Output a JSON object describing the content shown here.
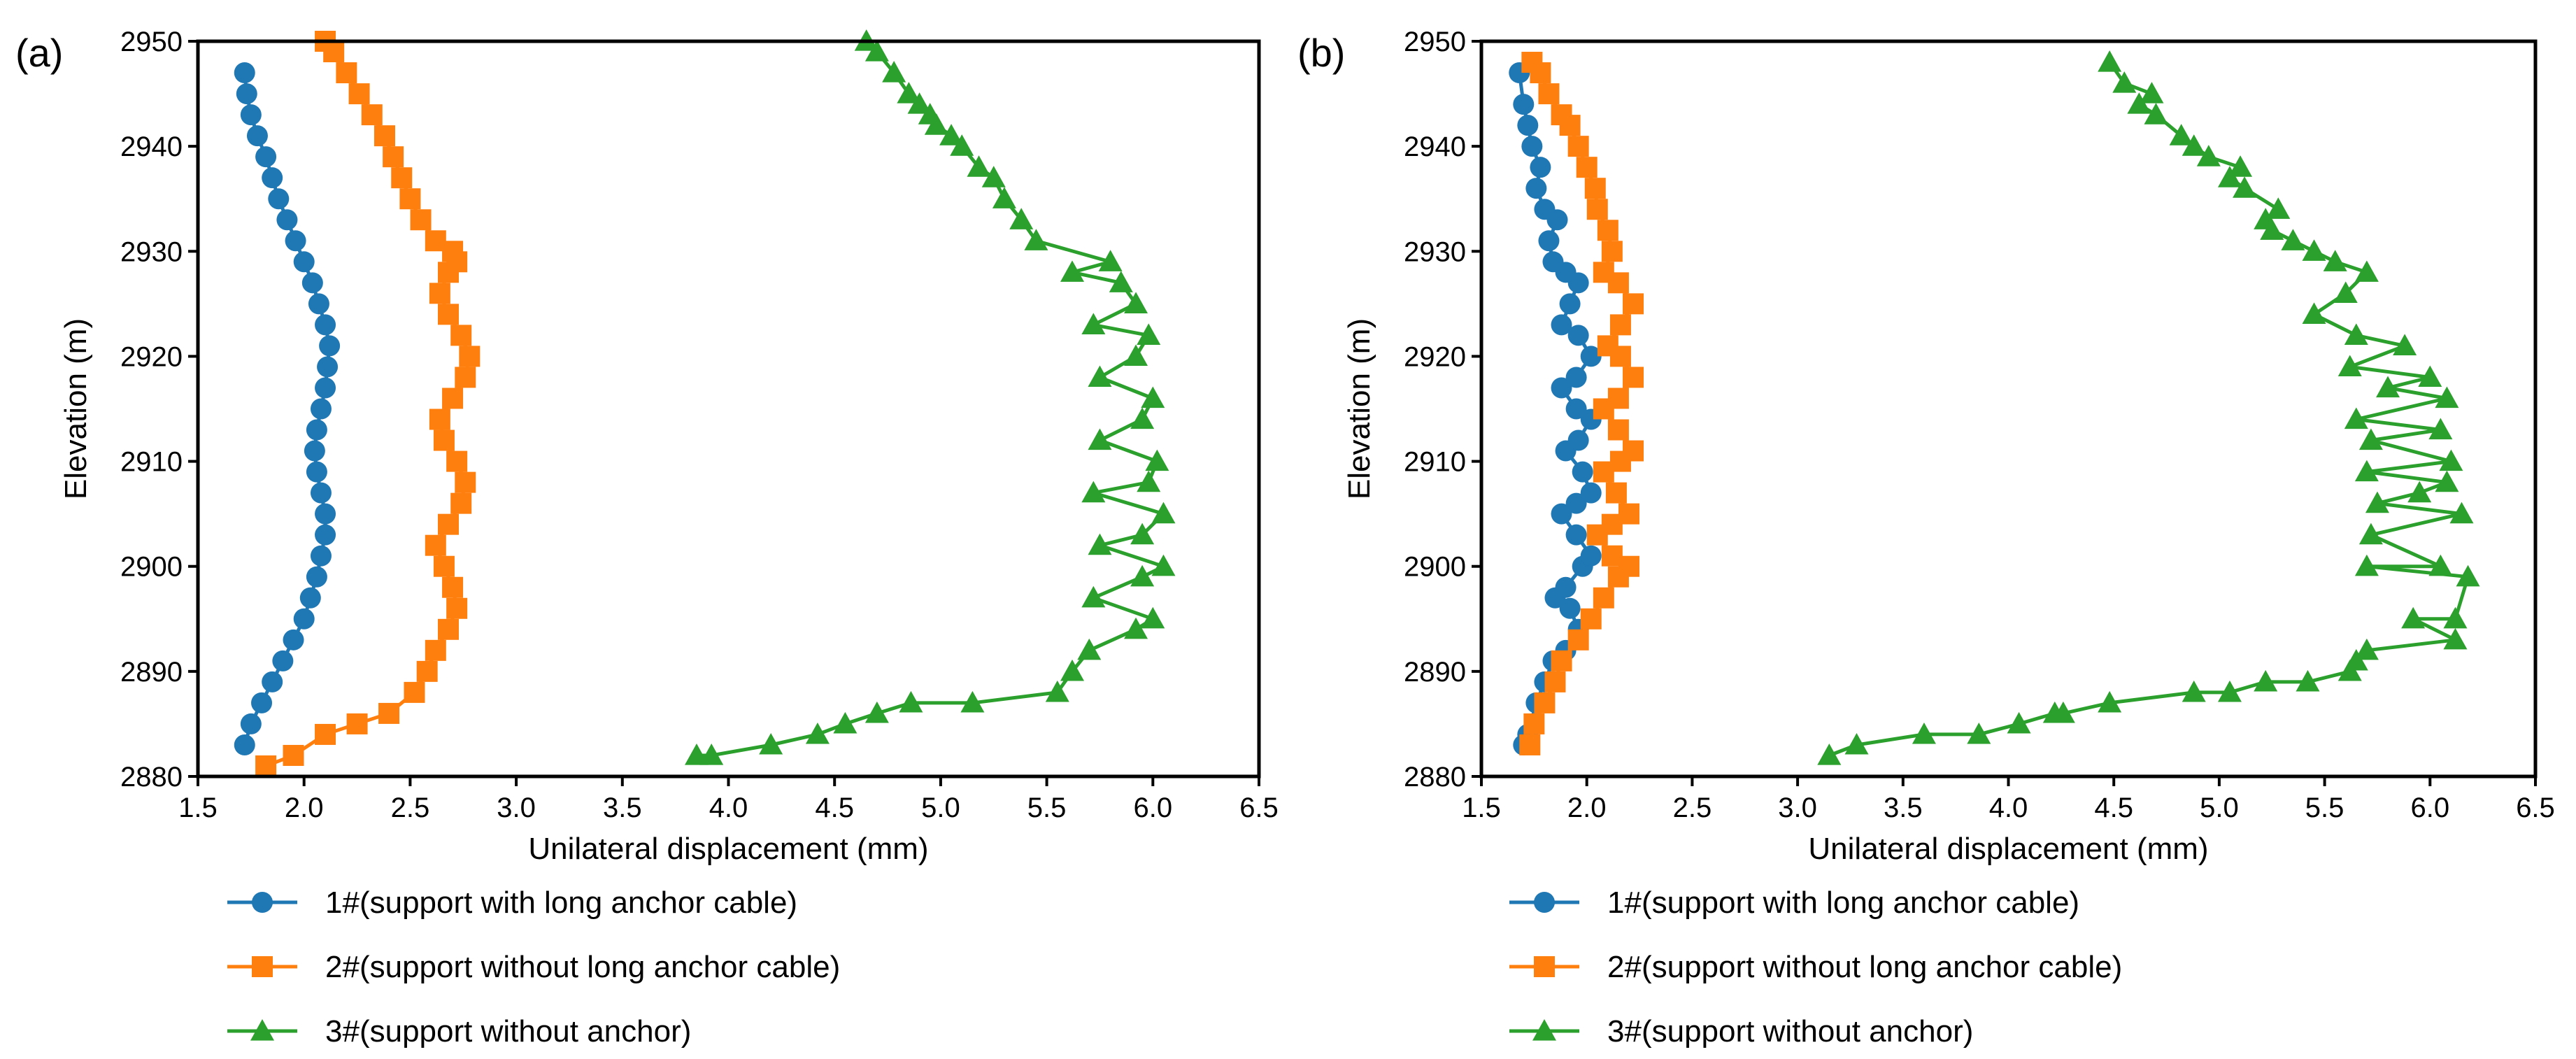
{
  "chart_data": [
    {
      "panel": "(a)",
      "type": "line",
      "xlabel": "Unilateral displacement (mm)",
      "ylabel": "Elevation (m)",
      "xlim": [
        1.5,
        6.5
      ],
      "ylim": [
        2880,
        2950
      ],
      "xticks": [
        "1.5",
        "2.0",
        "2.5",
        "3.0",
        "3.5",
        "4.0",
        "4.5",
        "5.0",
        "5.5",
        "6.0",
        "6.5"
      ],
      "yticks": [
        "2880",
        "2890",
        "2900",
        "2910",
        "2920",
        "2930",
        "2940",
        "2950"
      ],
      "legend": [
        "1#(support with long anchor cable)",
        "2#(support without long anchor cable)",
        "3#(support without anchor)"
      ],
      "series": [
        {
          "name": "1#(support with long anchor cable)",
          "marker": "circle",
          "color": "#1f77b4",
          "x": [
            1.72,
            1.75,
            1.8,
            1.85,
            1.9,
            1.95,
            2.0,
            2.03,
            2.06,
            2.08,
            2.1,
            2.1,
            2.08,
            2.06,
            2.05,
            2.06,
            2.08,
            2.1,
            2.11,
            2.12,
            2.1,
            2.07,
            2.04,
            2.0,
            1.96,
            1.92,
            1.88,
            1.85,
            1.82,
            1.78,
            1.75,
            1.73,
            1.72
          ],
          "y": [
            2883,
            2885,
            2887,
            2889,
            2891,
            2893,
            2895,
            2897,
            2899,
            2901,
            2903,
            2905,
            2907,
            2909,
            2911,
            2913,
            2915,
            2917,
            2919,
            2921,
            2923,
            2925,
            2927,
            2929,
            2931,
            2933,
            2935,
            2937,
            2939,
            2941,
            2943,
            2945,
            2947
          ]
        },
        {
          "name": "2#(support without long anchor cable)",
          "marker": "square",
          "color": "#ff7f0e",
          "x": [
            1.82,
            1.95,
            2.1,
            2.25,
            2.4,
            2.52,
            2.58,
            2.62,
            2.68,
            2.72,
            2.7,
            2.66,
            2.62,
            2.68,
            2.74,
            2.76,
            2.72,
            2.66,
            2.64,
            2.7,
            2.76,
            2.78,
            2.74,
            2.68,
            2.64,
            2.68,
            2.72,
            2.7,
            2.62,
            2.55,
            2.5,
            2.46,
            2.42,
            2.38,
            2.32,
            2.26,
            2.2,
            2.14,
            2.1
          ],
          "y": [
            2881,
            2882,
            2884,
            2885,
            2886,
            2888,
            2890,
            2892,
            2894,
            2896,
            2898,
            2900,
            2902,
            2904,
            2906,
            2908,
            2910,
            2912,
            2914,
            2916,
            2918,
            2920,
            2922,
            2924,
            2926,
            2928,
            2929,
            2930,
            2931,
            2933,
            2935,
            2937,
            2939,
            2941,
            2943,
            2945,
            2947,
            2949,
            2950
          ]
        },
        {
          "name": "3#(support without anchor)",
          "marker": "triangle",
          "color": "#2ca02c",
          "x": [
            3.85,
            3.92,
            4.2,
            4.42,
            4.55,
            4.7,
            4.86,
            5.15,
            5.55,
            5.62,
            5.7,
            5.92,
            6.0,
            5.72,
            5.95,
            6.05,
            5.75,
            5.95,
            6.05,
            5.72,
            5.98,
            6.02,
            5.75,
            5.95,
            6.0,
            5.75,
            5.92,
            5.98,
            5.72,
            5.92,
            5.85,
            5.62,
            5.8,
            5.45,
            5.38,
            5.3,
            5.25,
            5.18,
            5.1,
            5.05,
            4.98,
            4.95,
            4.9,
            4.85,
            4.78,
            4.7,
            4.65
          ],
          "y": [
            2882,
            2882,
            2883,
            2884,
            2885,
            2886,
            2887,
            2887,
            2888,
            2890,
            2892,
            2894,
            2895,
            2897,
            2899,
            2900,
            2902,
            2903,
            2905,
            2907,
            2908,
            2910,
            2912,
            2914,
            2916,
            2918,
            2920,
            2922,
            2923,
            2925,
            2927,
            2928,
            2929,
            2931,
            2933,
            2935,
            2937,
            2938,
            2940,
            2941,
            2942,
            2943,
            2944,
            2945,
            2947,
            2949,
            2950
          ]
        }
      ]
    },
    {
      "panel": "(b)",
      "type": "line",
      "xlabel": "Unilateral displacement (mm)",
      "ylabel": "Elevation (m)",
      "xlim": [
        1.5,
        6.5
      ],
      "ylim": [
        2880,
        2950
      ],
      "xticks": [
        "1.5",
        "2.0",
        "2.5",
        "3.0",
        "3.5",
        "4.0",
        "4.5",
        "5.0",
        "5.5",
        "6.0",
        "6.5"
      ],
      "yticks": [
        "2880",
        "2890",
        "2900",
        "2910",
        "2920",
        "2930",
        "2940",
        "2950"
      ],
      "legend": [
        "1#(support with long anchor cable)",
        "2#(support without long anchor cable)",
        "3#(support without anchor)"
      ],
      "series": [
        {
          "name": "1#(support with long anchor cable)",
          "marker": "circle",
          "color": "#1f77b4",
          "x": [
            1.7,
            1.72,
            1.76,
            1.8,
            1.84,
            1.9,
            1.96,
            1.92,
            1.85,
            1.9,
            1.98,
            2.02,
            1.95,
            1.88,
            1.95,
            2.02,
            1.98,
            1.9,
            1.96,
            2.02,
            1.95,
            1.88,
            1.95,
            2.02,
            1.96,
            1.88,
            1.92,
            1.96,
            1.9,
            1.84,
            1.82,
            1.86,
            1.8,
            1.76,
            1.78,
            1.74,
            1.72,
            1.7,
            1.68
          ],
          "y": [
            2883,
            2884,
            2887,
            2889,
            2891,
            2892,
            2894,
            2896,
            2897,
            2898,
            2900,
            2901,
            2903,
            2905,
            2906,
            2907,
            2909,
            2911,
            2912,
            2914,
            2915,
            2917,
            2918,
            2920,
            2922,
            2923,
            2925,
            2927,
            2928,
            2929,
            2931,
            2933,
            2934,
            2936,
            2938,
            2940,
            2942,
            2944,
            2947
          ]
        },
        {
          "name": "2#(support without long anchor cable)",
          "marker": "square",
          "color": "#ff7f0e",
          "x": [
            1.73,
            1.75,
            1.8,
            1.85,
            1.88,
            1.96,
            2.02,
            2.08,
            2.15,
            2.2,
            2.12,
            2.05,
            2.12,
            2.2,
            2.14,
            2.08,
            2.16,
            2.22,
            2.15,
            2.08,
            2.15,
            2.22,
            2.16,
            2.1,
            2.16,
            2.22,
            2.15,
            2.08,
            2.12,
            2.1,
            2.05,
            2.04,
            2.0,
            1.96,
            1.92,
            1.88,
            1.82,
            1.78,
            1.74
          ],
          "y": [
            2883,
            2885,
            2887,
            2889,
            2891,
            2893,
            2895,
            2897,
            2899,
            2900,
            2901,
            2903,
            2904,
            2905,
            2907,
            2909,
            2910,
            2911,
            2913,
            2915,
            2916,
            2918,
            2920,
            2921,
            2923,
            2925,
            2927,
            2928,
            2930,
            2932,
            2934,
            2936,
            2938,
            2940,
            2942,
            2943,
            2945,
            2947,
            2948
          ]
        },
        {
          "name": "3#(support without anchor)",
          "marker": "triangle",
          "color": "#2ca02c",
          "x": [
            3.15,
            3.28,
            3.6,
            3.86,
            4.05,
            4.22,
            4.26,
            4.48,
            4.88,
            5.05,
            5.22,
            5.42,
            5.62,
            5.65,
            5.7,
            6.12,
            5.92,
            6.12,
            6.18,
            5.7,
            6.05,
            5.72,
            6.15,
            5.75,
            5.95,
            6.08,
            5.7,
            6.1,
            5.72,
            6.05,
            5.65,
            6.08,
            5.8,
            6.0,
            5.62,
            5.88,
            5.65,
            5.45,
            5.6,
            5.7,
            5.55,
            5.45,
            5.35,
            5.25,
            5.22,
            5.28,
            5.12,
            5.05,
            5.1,
            4.95,
            4.88,
            4.82,
            4.7,
            4.62,
            4.68,
            4.55,
            4.48
          ],
          "y": [
            2882,
            2883,
            2884,
            2884,
            2885,
            2886,
            2886,
            2887,
            2888,
            2888,
            2889,
            2889,
            2890,
            2891,
            2892,
            2893,
            2895,
            2895,
            2899,
            2900,
            2900,
            2903,
            2905,
            2906,
            2907,
            2908,
            2909,
            2910,
            2912,
            2913,
            2914,
            2916,
            2917,
            2918,
            2919,
            2921,
            2922,
            2924,
            2926,
            2928,
            2929,
            2930,
            2931,
            2932,
            2933,
            2934,
            2936,
            2937,
            2938,
            2939,
            2940,
            2941,
            2943,
            2944,
            2945,
            2946,
            2948
          ]
        }
      ]
    }
  ]
}
